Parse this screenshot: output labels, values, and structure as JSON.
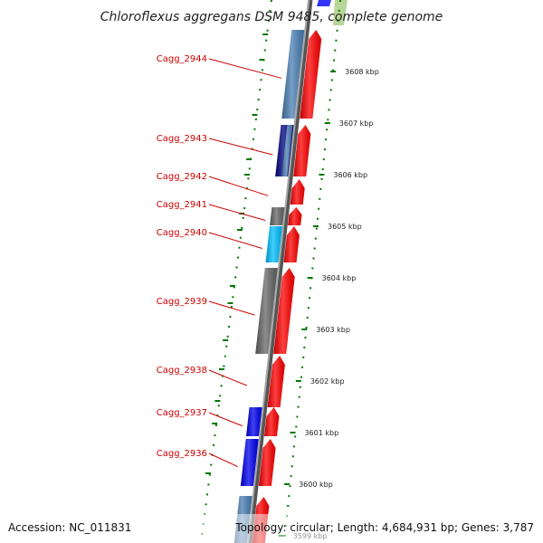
{
  "title": "Chloroflexus aggregans DSM 9485, complete genome",
  "footer": {
    "accession": "Accession: NC_011831",
    "topology": "Topology: circular; Length: 4,684,931 bp; Genes: 3,787"
  },
  "genes": [
    {
      "id": "Cagg_2944",
      "fill": "#4a7fb5"
    },
    {
      "id": "Cagg_2943",
      "fill": "#000080"
    },
    {
      "id": "Cagg_2942",
      "fill": "#ff0000"
    },
    {
      "id": "Cagg_2941",
      "fill": "#666666"
    },
    {
      "id": "Cagg_2940",
      "fill": "#00bfff"
    },
    {
      "id": "Cagg_2939",
      "fill": "#666666"
    },
    {
      "id": "Cagg_2938",
      "fill": "#ff0000"
    },
    {
      "id": "Cagg_2937",
      "fill": "#0000ee"
    },
    {
      "id": "Cagg_2936",
      "fill": "#0000ee"
    }
  ],
  "ticks": [
    {
      "kbp": 3608,
      "label": "3608 kbp"
    },
    {
      "kbp": 3607,
      "label": "3607 kbp"
    },
    {
      "kbp": 3606,
      "label": "3606 kbp"
    },
    {
      "kbp": 3605,
      "label": "3605 kbp"
    },
    {
      "kbp": 3604,
      "label": "3604 kbp"
    },
    {
      "kbp": 3603,
      "label": "3603 kbp"
    },
    {
      "kbp": 3602,
      "label": "3602 kbp"
    },
    {
      "kbp": 3601,
      "label": "3601 kbp"
    },
    {
      "kbp": 3600,
      "label": "3600 kbp"
    },
    {
      "kbp": 3599,
      "label": "3599 kbp"
    }
  ],
  "colors": {
    "cds_forward": "#ff0000",
    "backbone": "#808080",
    "gc_skew": "#007700",
    "label": "#cc0000"
  }
}
